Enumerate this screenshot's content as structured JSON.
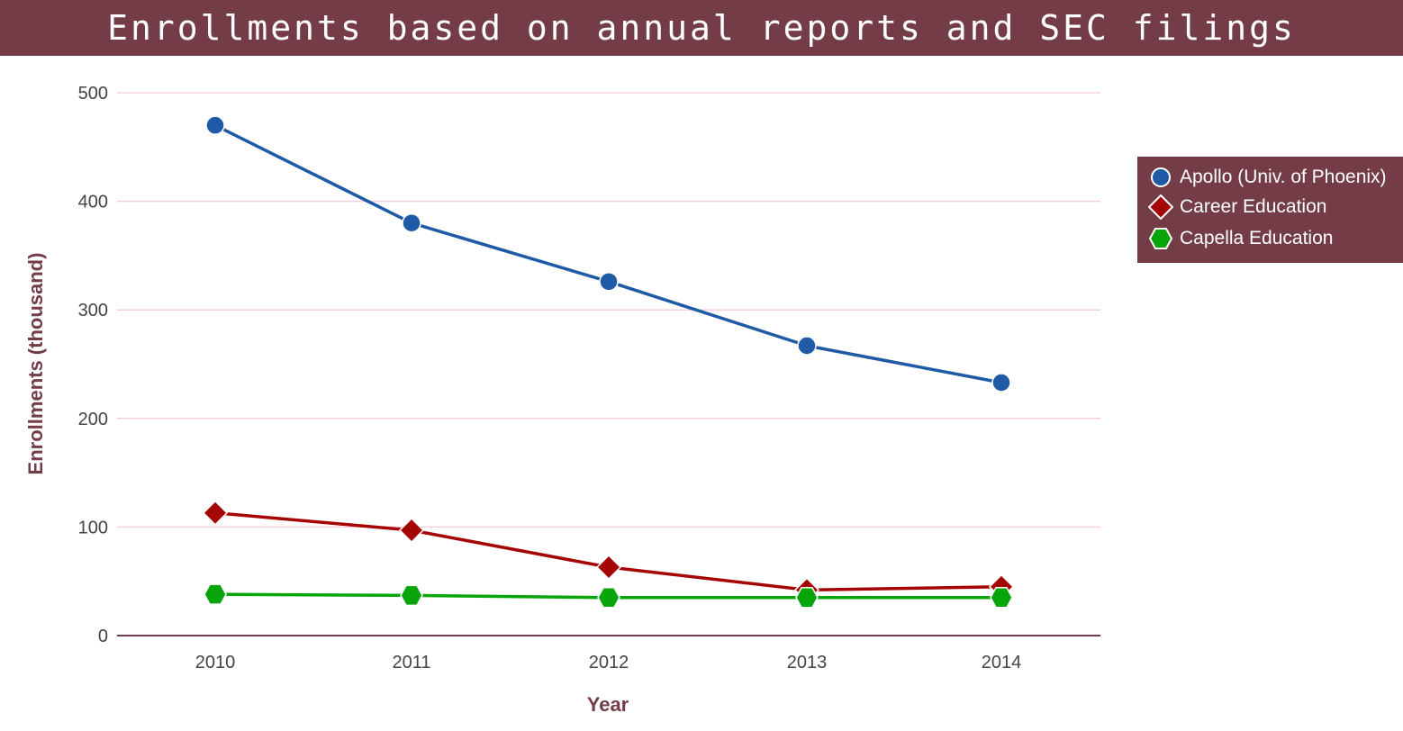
{
  "colors": {
    "title_bg": "#733c47",
    "axis_title": "#733c47",
    "grid": "#f5cfdf",
    "axis_line": "#733c47",
    "legend_bg": "#733c47"
  },
  "chart_data": {
    "type": "line",
    "title": "Enrollments based on annual reports and SEC filings",
    "xlabel": "Year",
    "ylabel": "Enrollments (thousand)",
    "categories": [
      "2010",
      "2011",
      "2012",
      "2013",
      "2014"
    ],
    "y_ticks": [
      "0",
      "100",
      "200",
      "300",
      "400",
      "500"
    ],
    "ylim": [
      0,
      500
    ],
    "grid": true,
    "legend_position": "right",
    "series": [
      {
        "name": "Apollo (Univ. of Phoenix)",
        "values": [
          470,
          380,
          326,
          267,
          233
        ],
        "color": "#1f5aa6",
        "marker": "circle"
      },
      {
        "name": "Career Education",
        "values": [
          113,
          97,
          63,
          42,
          45
        ],
        "color": "#a50505",
        "marker": "diamond"
      },
      {
        "name": "Capella Education",
        "values": [
          38,
          37,
          35,
          35,
          35
        ],
        "color": "#08a50a",
        "marker": "hexagon"
      }
    ]
  }
}
